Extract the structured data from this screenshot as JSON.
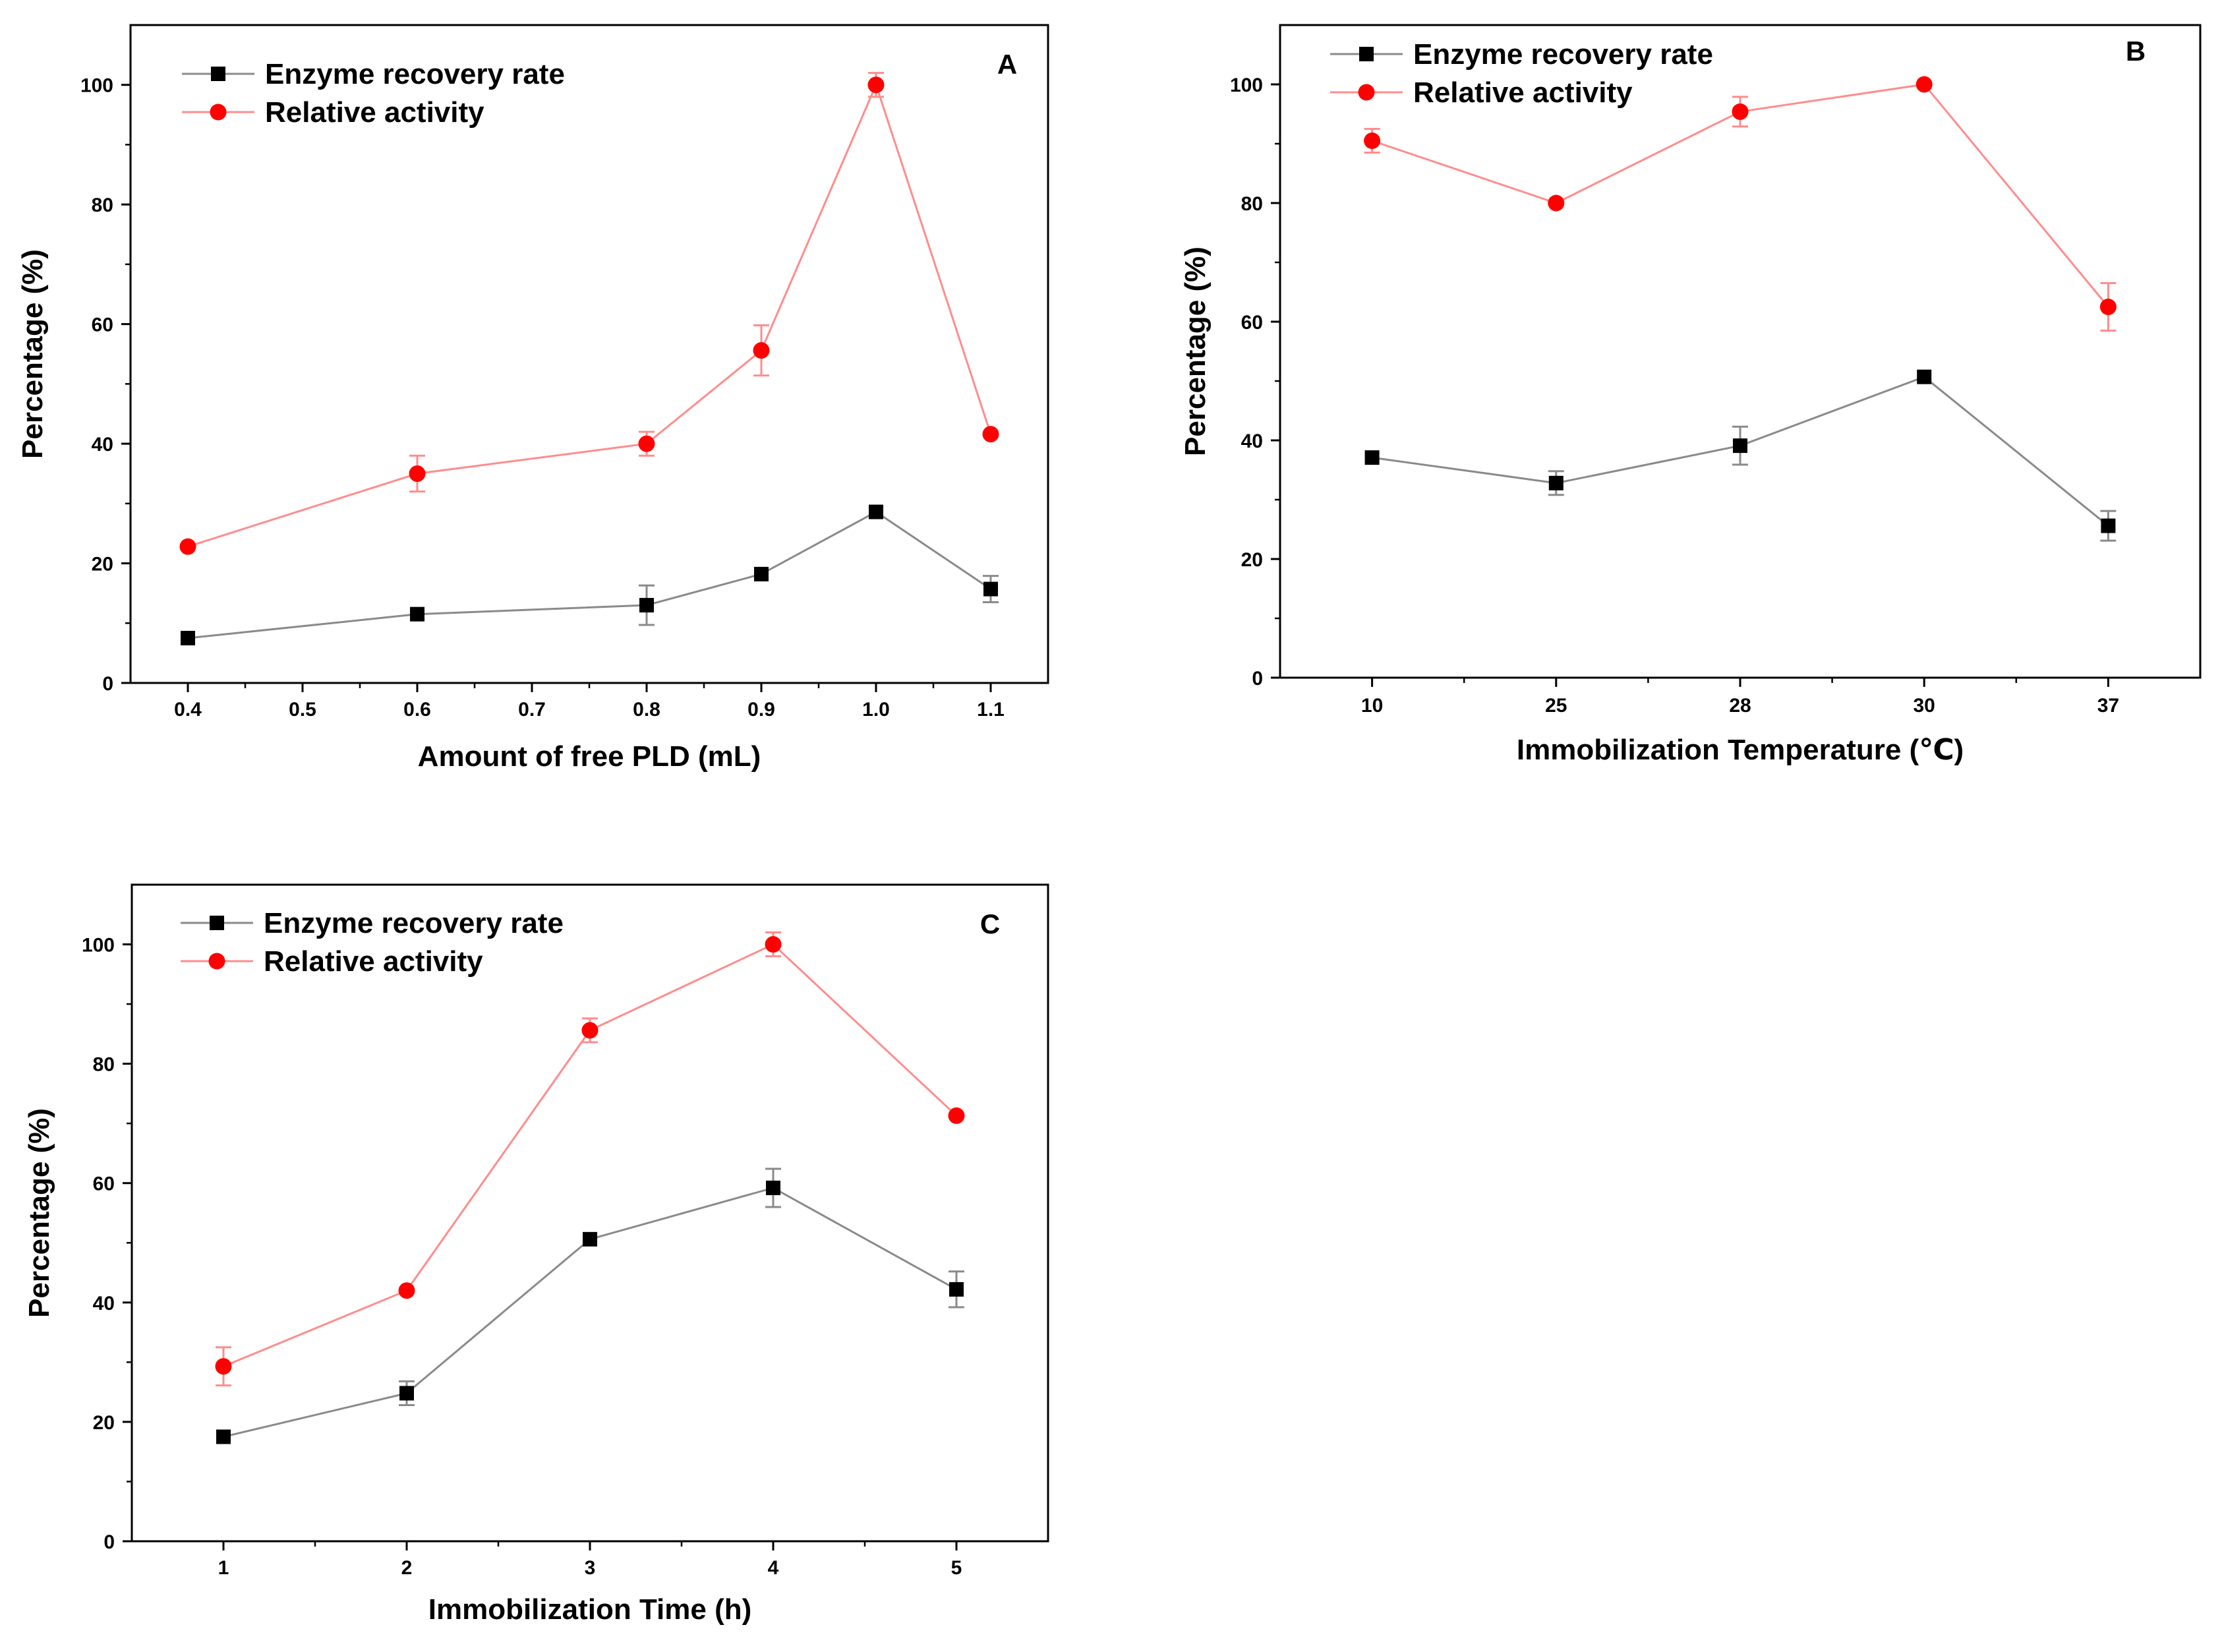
{
  "figure": {
    "colors": {
      "recovery": "#000000",
      "recovery_line": "#8a8a8a",
      "relative": "#ff0000",
      "relative_line": "#ff8c8c"
    }
  },
  "chart_data": [
    {
      "type": "line",
      "panel": "A",
      "xlabel": "Amount of free PLD (mL)",
      "ylabel": "Percentage (%)",
      "categories": [
        "0.4",
        "0.5",
        "0.6",
        "0.7",
        "0.8",
        "0.9",
        "1.0",
        "1.1"
      ],
      "x": [
        0.4,
        0.6,
        0.8,
        0.9,
        1.0,
        1.1
      ],
      "xlim": [
        0.35,
        1.15
      ],
      "ylim": [
        0,
        110
      ],
      "yticks": [
        0,
        20,
        40,
        60,
        80,
        100
      ],
      "legend_position": "top-left",
      "series": [
        {
          "name": "Enzyme recovery rate",
          "marker": "square",
          "values": [
            7.5,
            11.5,
            13,
            18.2,
            28.6,
            15.7
          ],
          "errors": [
            0,
            0,
            3.3,
            0,
            0,
            2.2
          ]
        },
        {
          "name": "Relative activity",
          "marker": "circle",
          "values": [
            22.8,
            35,
            40,
            55.6,
            100,
            41.6
          ],
          "errors": [
            0,
            3,
            2,
            4.2,
            2,
            0
          ]
        }
      ]
    },
    {
      "type": "line",
      "panel": "B",
      "xlabel": "Immobilization Temperature (℃)",
      "ylabel": "Percentage (%)",
      "categories": [
        "10",
        "25",
        "28",
        "30",
        "37"
      ],
      "x": [
        0,
        1,
        2,
        3,
        4
      ],
      "xlim": [
        -0.5,
        4.5
      ],
      "ylim": [
        0,
        110
      ],
      "yticks": [
        0,
        20,
        40,
        60,
        80,
        100
      ],
      "legend_position": "top-left",
      "series": [
        {
          "name": "Enzyme recovery rate",
          "marker": "square",
          "values": [
            37.1,
            32.8,
            39.1,
            50.7,
            25.6
          ],
          "errors": [
            0,
            2,
            3.2,
            0,
            2.5
          ]
        },
        {
          "name": "Relative activity",
          "marker": "circle",
          "values": [
            90.5,
            80,
            95.4,
            100,
            62.5
          ],
          "errors": [
            2,
            0,
            2.5,
            0,
            4
          ]
        }
      ]
    },
    {
      "type": "line",
      "panel": "C",
      "xlabel": "Immobilization Time (h)",
      "ylabel": "Percentage (%)",
      "categories": [
        "1",
        "2",
        "3",
        "4",
        "5"
      ],
      "x": [
        1,
        2,
        3,
        4,
        5
      ],
      "xlim": [
        0.5,
        5.5
      ],
      "ylim": [
        0,
        110
      ],
      "yticks": [
        0,
        20,
        40,
        60,
        80,
        100
      ],
      "legend_position": "top-left",
      "series": [
        {
          "name": "Enzyme recovery rate",
          "marker": "square",
          "values": [
            17.5,
            24.8,
            50.6,
            59.2,
            42.2
          ],
          "errors": [
            0,
            2,
            0,
            3.2,
            3
          ]
        },
        {
          "name": "Relative activity",
          "marker": "circle",
          "values": [
            29.3,
            42,
            85.6,
            100,
            71.3
          ],
          "errors": [
            3.2,
            0,
            2,
            2,
            0
          ]
        }
      ]
    }
  ]
}
